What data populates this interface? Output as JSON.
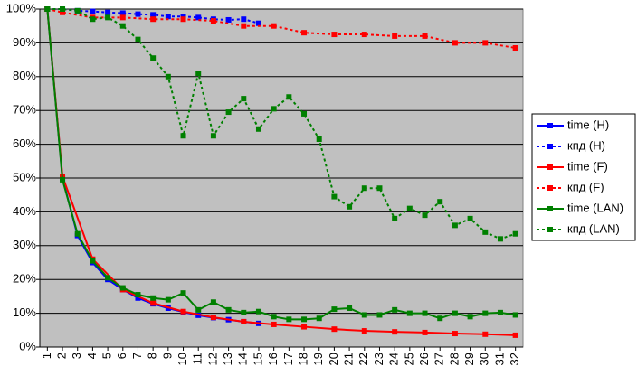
{
  "chart_data": {
    "type": "line",
    "xlim": [
      0.5,
      32.5
    ],
    "xticks": [
      1,
      2,
      3,
      4,
      5,
      6,
      7,
      8,
      9,
      10,
      11,
      12,
      13,
      14,
      15,
      16,
      17,
      18,
      19,
      20,
      21,
      22,
      23,
      24,
      25,
      26,
      27,
      28,
      29,
      30,
      31,
      32
    ],
    "ylim": [
      0,
      100
    ],
    "yticks": [
      {
        "value": 0,
        "label": "0%"
      },
      {
        "value": 10,
        "label": "10%"
      },
      {
        "value": 20,
        "label": "20%"
      },
      {
        "value": 30,
        "label": "30%"
      },
      {
        "value": 40,
        "label": "40%"
      },
      {
        "value": 50,
        "label": "50%"
      },
      {
        "value": 60,
        "label": "60%"
      },
      {
        "value": 70,
        "label": "70%"
      },
      {
        "value": 80,
        "label": "80%"
      },
      {
        "value": 90,
        "label": "90%"
      },
      {
        "value": 100,
        "label": "100%"
      }
    ],
    "grid": true,
    "legend": "right",
    "series": [
      {
        "name": "time (H)",
        "color": "#0000ff",
        "dash": false,
        "x": [
          1,
          2,
          3,
          4,
          5,
          6,
          7,
          8,
          9,
          10,
          11,
          12,
          13,
          14,
          15
        ],
        "values": [
          100,
          50,
          33,
          25,
          20,
          17,
          14.5,
          12.8,
          11.5,
          10.4,
          9.4,
          8.7,
          8.1,
          7.5,
          7.0
        ]
      },
      {
        "name": "кпд (H)",
        "color": "#0000ff",
        "dash": true,
        "x": [
          1,
          2,
          3,
          4,
          5,
          6,
          7,
          8,
          9,
          10,
          11,
          12,
          13,
          14,
          15
        ],
        "values": [
          100,
          100,
          99.5,
          99.3,
          99,
          98.8,
          98.5,
          98.3,
          97.8,
          97.8,
          97.5,
          97,
          96.8,
          97,
          95.8
        ]
      },
      {
        "name": "time (F)",
        "color": "#ff0000",
        "dash": false,
        "x": [
          1,
          2,
          4,
          6,
          8,
          10,
          12,
          14,
          16,
          18,
          20,
          22,
          24,
          26,
          28,
          30,
          32
        ],
        "values": [
          100,
          50.5,
          26,
          17,
          13,
          10.5,
          8.8,
          7.5,
          6.7,
          6,
          5.3,
          4.8,
          4.5,
          4.3,
          4,
          3.8,
          3.5
        ]
      },
      {
        "name": "кпд (F)",
        "color": "#ff0000",
        "dash": true,
        "x": [
          1,
          2,
          4,
          6,
          8,
          10,
          12,
          14,
          16,
          18,
          20,
          22,
          24,
          26,
          28,
          30,
          32
        ],
        "values": [
          100,
          99,
          97.5,
          97.5,
          97,
          97,
          96.5,
          95,
          95,
          93,
          92.5,
          92.5,
          92,
          92,
          90,
          90,
          88.5
        ]
      },
      {
        "name": "time (LAN)",
        "color": "#008000",
        "dash": false,
        "x": [
          1,
          2,
          3,
          4,
          5,
          6,
          7,
          8,
          9,
          10,
          11,
          12,
          13,
          14,
          15,
          16,
          17,
          18,
          19,
          20,
          21,
          22,
          23,
          24,
          25,
          26,
          27,
          28,
          29,
          30,
          31,
          32
        ],
        "values": [
          100,
          49.5,
          33.5,
          25.5,
          20.5,
          17.5,
          15.5,
          14.5,
          14,
          16,
          11,
          13.3,
          11,
          10.2,
          10.5,
          9,
          8.2,
          8.2,
          8.5,
          11.2,
          11.5,
          9.5,
          9.5,
          11,
          10,
          10,
          8.5,
          10,
          9,
          10,
          10.2,
          9.5
        ]
      },
      {
        "name": "кпд (LAN)",
        "color": "#008000",
        "dash": true,
        "x": [
          1,
          2,
          3,
          4,
          5,
          6,
          7,
          8,
          9,
          10,
          11,
          12,
          13,
          14,
          15,
          16,
          17,
          18,
          19,
          20,
          21,
          22,
          23,
          24,
          25,
          26,
          27,
          28,
          29,
          30,
          31,
          32
        ],
        "values": [
          100,
          100,
          99.5,
          97,
          97.5,
          95,
          91,
          85.5,
          80,
          62.5,
          81,
          62.5,
          69.5,
          73.5,
          64.5,
          70.5,
          74,
          69,
          61.5,
          44.5,
          41.5,
          47,
          47,
          38,
          41,
          39,
          43,
          36,
          38,
          34,
          32,
          33.5
        ]
      }
    ]
  }
}
